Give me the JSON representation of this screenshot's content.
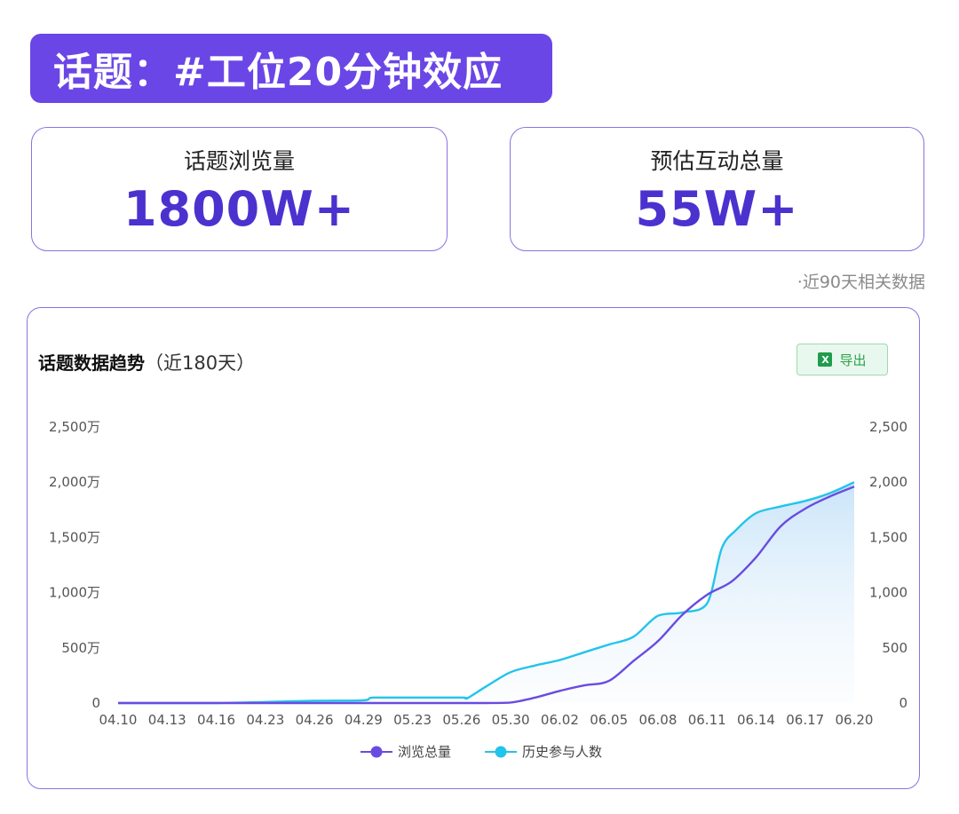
{
  "topic": {
    "title": "话题：#工位20分钟效应"
  },
  "stats": {
    "views": {
      "label": "话题浏览量",
      "value": "1800W+"
    },
    "interactions": {
      "label": "预估互动总量",
      "value": "55W+"
    }
  },
  "note": "·近90天相关数据",
  "chart_header": {
    "title": "话题数据趋势",
    "subtitle": "（近180天）",
    "export_label": "导出",
    "export_icon": "excel-icon"
  },
  "colors": {
    "brand": "#6b46e6",
    "value": "#4b32cf",
    "series1": "#6a4be0",
    "series2": "#22c4ea",
    "export_green": "#2ea24b"
  },
  "chart_data": {
    "type": "line",
    "title": "话题数据趋势（近180天）",
    "categories": [
      "04.10",
      "04.13",
      "04.16",
      "04.23",
      "04.26",
      "04.29",
      "05.23",
      "05.26",
      "05.30",
      "06.02",
      "06.05",
      "06.08",
      "06.11",
      "06.14",
      "06.17",
      "06.20"
    ],
    "left_axis": {
      "ticks": [
        "0",
        "500万",
        "1,000万",
        "1,500万",
        "2,000万",
        "2,500万"
      ],
      "ylim": [
        0,
        2500
      ],
      "unit": "万"
    },
    "right_axis": {
      "ticks": [
        "0",
        "500",
        "1,000",
        "1,500",
        "2,000",
        "2,500"
      ],
      "ylim": [
        0,
        2500
      ]
    },
    "series": [
      {
        "name": "浏览总量",
        "axis": "left",
        "x": [
          0,
          1,
          2,
          3,
          4,
          5,
          6,
          7,
          7.5,
          8,
          8.5,
          9,
          9.5,
          10,
          10.5,
          11,
          11.5,
          12,
          12.5,
          13,
          13.5,
          14,
          14.5,
          15
        ],
        "values": [
          0,
          0,
          0,
          0,
          0,
          0,
          0,
          0,
          0,
          5,
          50,
          110,
          160,
          200,
          380,
          560,
          800,
          980,
          1100,
          1320,
          1600,
          1760,
          1870,
          1960
        ]
      },
      {
        "name": "历史参与人数",
        "axis": "right",
        "x": [
          0,
          1,
          2,
          3,
          4,
          5,
          5.2,
          6,
          7,
          7.1,
          7.5,
          8,
          8.5,
          9,
          9.5,
          10,
          10.5,
          11,
          11.5,
          12,
          12.3,
          12.6,
          13,
          13.5,
          14,
          14.5,
          15
        ],
        "values": [
          0,
          0,
          0,
          10,
          20,
          25,
          50,
          50,
          50,
          40,
          150,
          280,
          340,
          390,
          460,
          530,
          600,
          790,
          820,
          900,
          1400,
          1570,
          1720,
          1780,
          1830,
          1900,
          2000
        ]
      }
    ],
    "legend": [
      "浏览总量",
      "历史参与人数"
    ],
    "legend_position": "bottom-center"
  }
}
